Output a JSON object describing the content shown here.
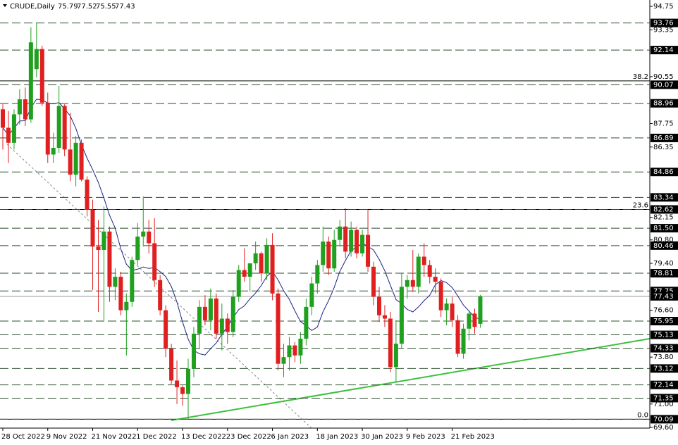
{
  "header": {
    "symbol": "CRUDE,Daily",
    "open": 75.79,
    "high": 77.52,
    "low": 75.55,
    "close": 77.43
  },
  "chart_data": {
    "type": "candlestick",
    "categories": [
      "28 Oct 2022",
      null,
      null,
      null,
      null,
      null,
      null,
      null,
      "9 Nov 2022",
      null,
      null,
      null,
      null,
      null,
      null,
      null,
      "21 Nov 2022",
      null,
      null,
      null,
      null,
      null,
      null,
      null,
      "1 Dec 2022",
      null,
      null,
      null,
      null,
      null,
      null,
      null,
      "13 Dec 2022",
      null,
      null,
      null,
      null,
      null,
      null,
      null,
      "23 Dec 2022",
      null,
      null,
      null,
      null,
      null,
      null,
      null,
      "6 Jan 2023",
      null,
      null,
      null,
      null,
      null,
      null,
      null,
      "18 Jan 2023",
      null,
      null,
      null,
      null,
      null,
      null,
      null,
      "30 Jan 2023",
      null,
      null,
      null,
      null,
      null,
      null,
      null,
      "9 Feb 2023",
      null,
      null,
      null,
      null,
      null,
      null,
      null,
      "21 Feb 2023",
      null,
      null,
      null,
      null,
      null
    ],
    "open": [
      88.6,
      87.5,
      86.6,
      88.3,
      89.2,
      88.0,
      91.0,
      92.2,
      89.0,
      85.9,
      86.3,
      88.8,
      86.2,
      84.7,
      86.6,
      84.4,
      82.6,
      80.4,
      80.2,
      81.3,
      78.0,
      78.6,
      76.6,
      77.1,
      79.6,
      81.0,
      81.3,
      80.6,
      78.4,
      76.6,
      74.3,
      72.4,
      72.0,
      71.6,
      73.1,
      75.2,
      76.8,
      76.0,
      77.3,
      75.2,
      76.1,
      75.3,
      77.4,
      79.0,
      78.6,
      79.4,
      80.0,
      78.8,
      80.5,
      77.6,
      73.4,
      73.8,
      74.5,
      73.9,
      74.9,
      76.8,
      78.2,
      79.3,
      80.7,
      79.1,
      80.8,
      81.6,
      80.1,
      81.4,
      80.0,
      81.1,
      79.2,
      77.4,
      76.3,
      76.1,
      73.2,
      74.6,
      78.0,
      78.4,
      78.0,
      79.8,
      79.3,
      78.6,
      78.3,
      76.6,
      77.0,
      76.0,
      74.0,
      75.5,
      76.4,
      75.79
    ],
    "high": [
      88.9,
      88.5,
      88.6,
      89.8,
      89.9,
      93.5,
      93.76,
      92.4,
      89.6,
      87.2,
      90.0,
      88.9,
      88.4,
      87.0,
      86.8,
      84.6,
      83.2,
      82.0,
      82.8,
      81.6,
      79.1,
      78.9,
      77.6,
      79.8,
      81.8,
      83.4,
      82.0,
      82.1,
      78.7,
      76.9,
      74.6,
      73.6,
      72.1,
      73.7,
      75.6,
      77.2,
      77.5,
      77.9,
      77.6,
      77.0,
      76.4,
      77.8,
      79.3,
      80.3,
      79.4,
      80.7,
      80.1,
      80.9,
      81.2,
      77.9,
      74.6,
      75.0,
      74.7,
      75.3,
      77.3,
      78.6,
      79.6,
      81.6,
      81.0,
      81.4,
      82.0,
      82.7,
      81.9,
      81.6,
      81.4,
      82.6,
      79.5,
      78.0,
      76.9,
      76.5,
      76.0,
      78.8,
      78.7,
      80.2,
      80.0,
      80.6,
      79.6,
      79.1,
      78.5,
      77.3,
      77.4,
      76.3,
      75.8,
      76.6,
      76.7,
      77.52
    ],
    "low": [
      86.2,
      85.4,
      86.2,
      87.7,
      87.6,
      87.8,
      90.5,
      88.8,
      85.4,
      85.4,
      86.0,
      85.8,
      84.3,
      84.0,
      84.3,
      82.2,
      77.8,
      76.5,
      76.0,
      77.1,
      77.2,
      76.3,
      73.9,
      76.8,
      79.3,
      80.4,
      80.0,
      78.0,
      76.3,
      73.8,
      72.2,
      71.0,
      70.9,
      70.09,
      72.6,
      74.3,
      75.7,
      75.4,
      74.9,
      74.2,
      74.6,
      75.0,
      77.1,
      78.3,
      77.7,
      79.0,
      78.3,
      78.4,
      77.2,
      73.0,
      72.6,
      73.0,
      73.5,
      73.4,
      74.5,
      76.3,
      77.6,
      78.9,
      78.7,
      78.9,
      80.4,
      79.7,
      79.8,
      79.7,
      79.8,
      78.9,
      76.9,
      75.9,
      75.6,
      72.9,
      72.3,
      74.3,
      77.3,
      77.7,
      77.6,
      78.6,
      78.2,
      77.6,
      76.2,
      75.7,
      75.6,
      73.8,
      73.7,
      74.8,
      75.2,
      75.55
    ],
    "close": [
      87.5,
      86.6,
      88.3,
      89.2,
      88.0,
      92.6,
      92.2,
      89.0,
      85.9,
      86.3,
      88.8,
      86.2,
      84.7,
      86.6,
      84.4,
      82.6,
      80.4,
      80.2,
      81.3,
      78.0,
      78.6,
      76.6,
      77.1,
      79.6,
      81.0,
      81.3,
      80.6,
      78.4,
      76.6,
      74.3,
      72.4,
      72.0,
      71.6,
      73.1,
      75.2,
      76.8,
      76.0,
      77.3,
      75.2,
      76.1,
      75.3,
      77.4,
      79.0,
      78.6,
      79.4,
      80.0,
      78.8,
      80.5,
      77.6,
      73.4,
      73.8,
      74.5,
      73.9,
      74.9,
      76.8,
      78.2,
      79.3,
      80.7,
      79.1,
      80.8,
      81.6,
      80.1,
      81.4,
      80.0,
      81.1,
      79.2,
      77.4,
      76.3,
      76.1,
      73.2,
      74.6,
      78.0,
      78.4,
      78.0,
      79.8,
      79.3,
      78.6,
      78.3,
      76.6,
      77.0,
      76.0,
      74.0,
      75.5,
      76.4,
      75.6,
      77.43
    ],
    "up_color": "#1fa01f",
    "down_color": "#e02020",
    "ylim": [
      69.56,
      95.13
    ],
    "yticks": [
      {
        "value": 94.75,
        "label": "94.75"
      },
      93.35,
      90.55,
      87.75,
      86.35,
      82.15,
      {
        "value": 80.8,
        "label": "80.80"
      },
      {
        "value": 79.4,
        "label": "79.40"
      },
      {
        "value": 76.6,
        "label": "76.60"
      },
      {
        "value": 73.8,
        "label": "73.80"
      },
      {
        "value": 71.0,
        "label": "71.00"
      },
      {
        "value": 69.6,
        "label": "69.60"
      }
    ],
    "levels": [
      93.76,
      92.14,
      90.07,
      88.96,
      86.89,
      84.86,
      83.34,
      82.62,
      {
        "value": 81.5,
        "label": "81.50"
      },
      80.46,
      78.81,
      77.75,
      75.95,
      75.13,
      74.33,
      73.12,
      72.14,
      71.35,
      70.09
    ],
    "fib_levels": [
      {
        "value": 90.3,
        "label": "38.2"
      },
      {
        "value": 82.62,
        "label": "23.6"
      },
      {
        "value": 70.09,
        "label": "0.0"
      }
    ]
  }
}
